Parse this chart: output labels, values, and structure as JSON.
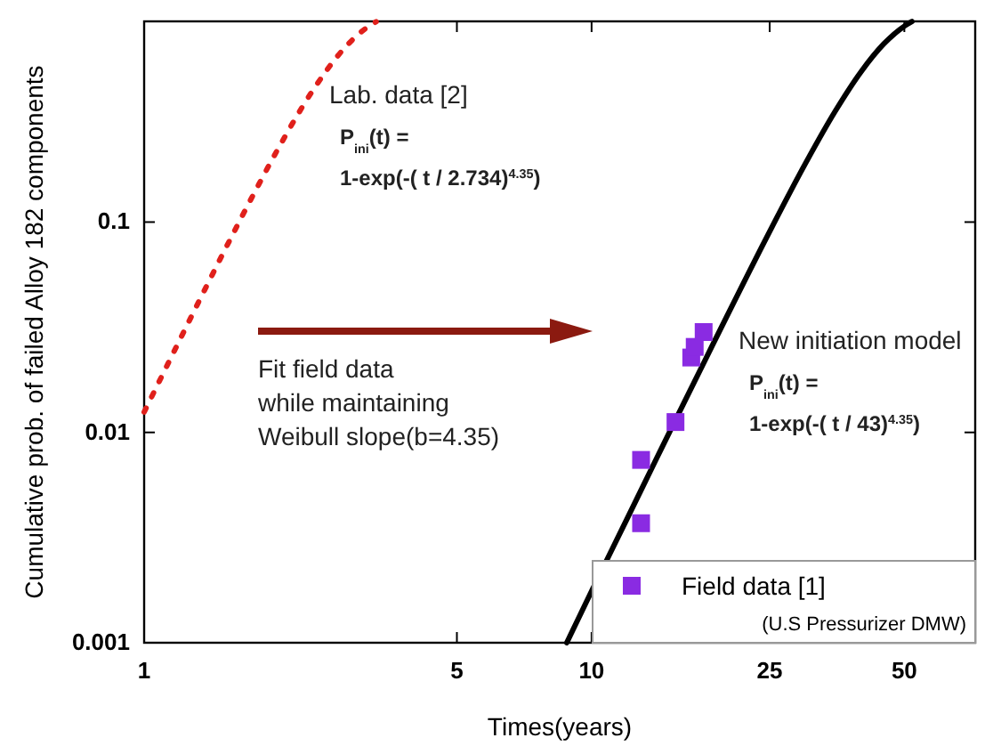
{
  "chart_data": {
    "type": "line",
    "xlabel": "Times(years)",
    "ylabel": "Cumulative prob. of failed Alloy 182 components",
    "log": "xy",
    "xlim": [
      1,
      72
    ],
    "xticks": [
      1,
      5,
      10,
      25,
      50
    ],
    "ylim": [
      0.001,
      0.9
    ],
    "yticks": [
      0.001,
      0.01,
      0.1
    ],
    "grid": false,
    "legend": "bottom right",
    "legend_title": "(U.S Pressurizer DMW)",
    "series": [
      {
        "color": "#e0201b",
        "line_style": "dotted",
        "x": [
          1,
          1.2,
          1.5,
          1.8,
          2,
          2.4,
          2.8,
          3.2,
          3.3
        ],
        "values": [
          0.0125,
          0.0274,
          0.0708,
          0.1498,
          0.2264,
          0.433,
          0.67,
          0.862,
          0.896
        ]
      },
      {
        "color": "#000000",
        "line_style": "solid",
        "x": [
          8.8,
          10,
          12,
          14,
          16,
          18,
          20,
          25,
          30,
          35,
          40,
          45,
          50,
          52
        ],
        "values": [
          0.001,
          0.00176,
          0.00388,
          0.00759,
          0.0135,
          0.0224,
          0.0352,
          0.0902,
          0.1886,
          0.3355,
          0.518,
          0.704,
          0.854,
          0.898
        ]
      },
      {
        "type": "scatter",
        "name": "Field data [1]",
        "color": "#8a2be2",
        "marker": "square",
        "x": [
          12.9,
          12.9,
          15.4,
          16.7,
          17.0,
          17.8
        ],
        "values": [
          0.0037,
          0.0074,
          0.0112,
          0.0227,
          0.0255,
          0.03
        ]
      }
    ],
    "annotations": [
      "Lab. data [2]\nP$_{ini}$(t) =\n1-exp(-( t / 2.734)$^{4.35}$)",
      "Fit field data\nwhile maintaining\nWeibull slope(b=4.35)",
      "New initiation model\nP$_{ini}$(t) =\n1-exp(-( t / 43)$^{4.35}$)"
    ]
  }
}
